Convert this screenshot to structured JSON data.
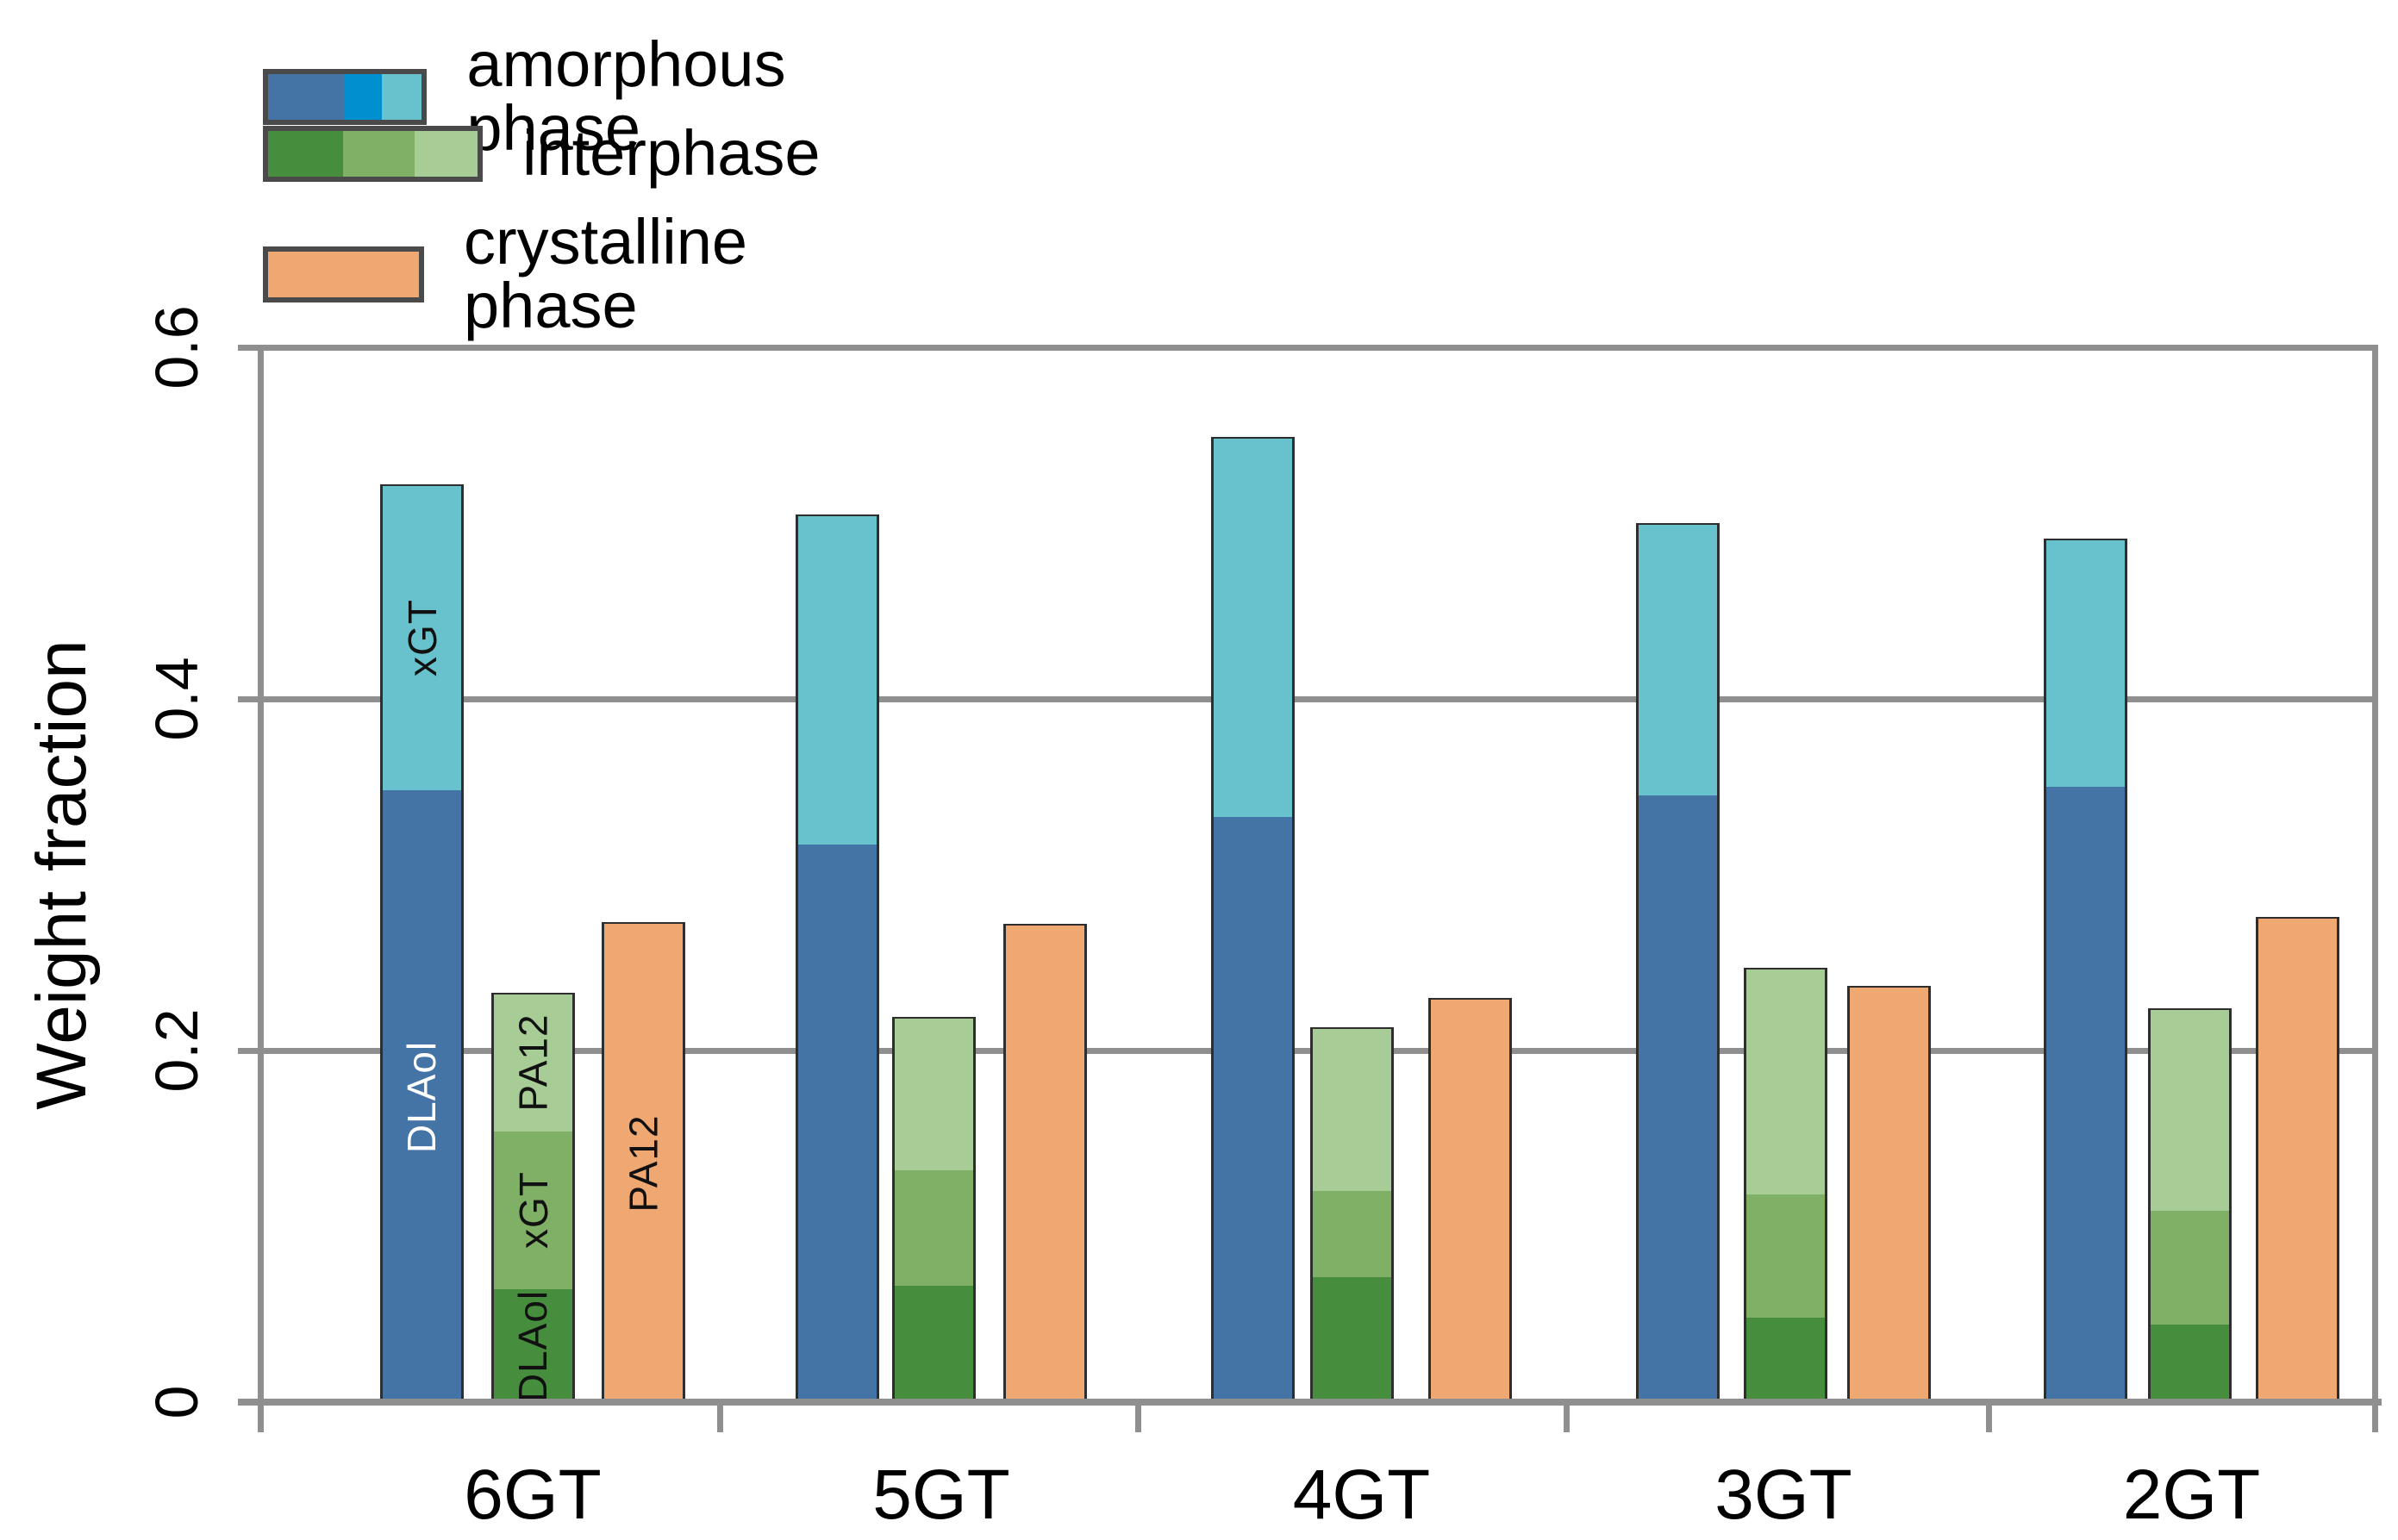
{
  "figure": {
    "background": "#FFFFFF",
    "frame_color": "#8F8F8F",
    "bar_border_color": "#2E2E2E",
    "text_color": "#000000"
  },
  "legend": {
    "items": [
      {
        "label": "amorphous phase",
        "cells": [
          {
            "color": "#4473A5",
            "frac": 0.5
          },
          {
            "color": "#0090CF",
            "frac": 0.24
          },
          {
            "color": "#67C2CE",
            "frac": 0.26
          }
        ]
      },
      {
        "label": "interphase",
        "cells": [
          {
            "color": "#468E3E",
            "frac": 0.36
          },
          {
            "color": "#7FB066",
            "frac": 0.34
          },
          {
            "color": "#A7CC96",
            "frac": 0.3
          }
        ]
      },
      {
        "label": "crystalline phase",
        "cells": [
          {
            "color": "#F0A872",
            "frac": 1.0
          }
        ]
      }
    ]
  },
  "chart_data": {
    "type": "bar",
    "title": "",
    "xlabel": "",
    "ylabel": "Weight fraction",
    "ylim": [
      0,
      0.6
    ],
    "grid": "horizontal",
    "legend_position": "top-left",
    "yticks": [
      {
        "value": 0.6,
        "label": "0.6"
      },
      {
        "value": 0.4,
        "label": "0.4"
      },
      {
        "value": 0.2,
        "label": "0.2"
      },
      {
        "value": 0.0,
        "label": "0"
      }
    ],
    "categories": [
      "6GT",
      "5GT",
      "4GT",
      "3GT",
      "2GT"
    ],
    "segment_labels_shown_on_category": "6GT",
    "series": [
      {
        "name": "amorphous phase",
        "stacked": true,
        "segments": [
          {
            "name": "DLAol",
            "color": "#4473A5",
            "label_color": "#FFFFFF",
            "values": [
              0.349,
              0.318,
              0.334,
              0.346,
              0.351
            ]
          },
          {
            "name": "xGT",
            "color": "#67C2CE",
            "label_color": "#111111",
            "values": [
              0.173,
              0.187,
              0.215,
              0.154,
              0.14
            ]
          }
        ]
      },
      {
        "name": "interphase",
        "stacked": true,
        "segments": [
          {
            "name": "DLAol",
            "color": "#468E3E",
            "label_color": "#111111",
            "values": [
              0.065,
              0.067,
              0.072,
              0.049,
              0.045
            ]
          },
          {
            "name": "xGT",
            "color": "#7FB066",
            "label_color": "#111111",
            "values": [
              0.09,
              0.066,
              0.049,
              0.07,
              0.065
            ]
          },
          {
            "name": "PA12",
            "color": "#A7CC96",
            "label_color": "#111111",
            "values": [
              0.078,
              0.086,
              0.092,
              0.128,
              0.114
            ]
          }
        ]
      },
      {
        "name": "crystalline phase",
        "stacked": false,
        "segments": [
          {
            "name": "PA12",
            "color": "#F0A872",
            "label_color": "#111111",
            "values": [
              0.273,
              0.272,
              0.23,
              0.237,
              0.276
            ]
          }
        ]
      }
    ]
  }
}
